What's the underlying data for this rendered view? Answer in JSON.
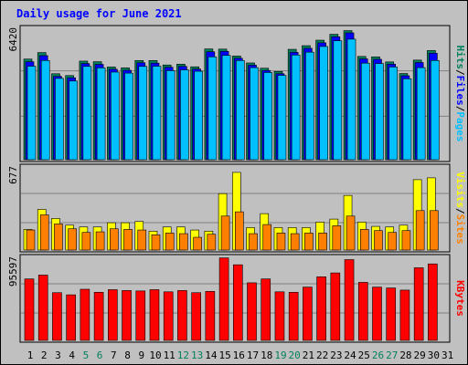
{
  "chart_data": [
    {
      "type": "bar",
      "title": "Daily usage for June 2021",
      "categories": [
        "1",
        "2",
        "3",
        "4",
        "5",
        "6",
        "7",
        "8",
        "9",
        "10",
        "11",
        "12",
        "13",
        "14",
        "15",
        "16",
        "17",
        "18",
        "19",
        "20",
        "21",
        "22",
        "23",
        "24",
        "25",
        "26",
        "27",
        "28",
        "29",
        "30",
        "31"
      ],
      "weekend_days": [
        "5",
        "6",
        "12",
        "13",
        "19",
        "20",
        "26",
        "27"
      ],
      "ymax_label": "6420",
      "ylim": [
        0,
        6420
      ],
      "legend": [
        "Pages",
        "Files",
        "Hits"
      ],
      "series": [
        {
          "name": "Hits",
          "color": "#00805c",
          "values": [
            4950,
            5270,
            4230,
            4140,
            4850,
            4820,
            4560,
            4520,
            4880,
            4880,
            4660,
            4700,
            4570,
            5450,
            5440,
            5100,
            4760,
            4500,
            4340,
            5430,
            5610,
            5880,
            6170,
            6350,
            5080,
            5060,
            4810,
            4240,
            4900,
            5370,
            0
          ]
        },
        {
          "name": "Files",
          "color": "#0000ff",
          "values": [
            4820,
            5120,
            4100,
            4030,
            4730,
            4690,
            4450,
            4400,
            4770,
            4750,
            4550,
            4590,
            4460,
            5310,
            5330,
            4990,
            4650,
            4390,
            4230,
            5280,
            5480,
            5750,
            6050,
            6240,
            4960,
            4940,
            4700,
            4130,
            4780,
            5240,
            0
          ]
        },
        {
          "name": "Pages",
          "color": "#00c0ff",
          "values": [
            4600,
            4880,
            4000,
            3870,
            4590,
            4520,
            4310,
            4260,
            4590,
            4600,
            4380,
            4420,
            4350,
            5060,
            5130,
            4880,
            4530,
            4290,
            4150,
            5150,
            5290,
            5570,
            5850,
            5930,
            4750,
            4730,
            4560,
            3980,
            4530,
            4880,
            0
          ]
        }
      ]
    },
    {
      "type": "bar",
      "ymax_label": "677",
      "ylim": [
        0,
        677
      ],
      "legend": [
        "Sites",
        "Visits"
      ],
      "series": [
        {
          "name": "Visits",
          "color": "#ffff00",
          "values": [
            170,
            335,
            260,
            205,
            190,
            190,
            225,
            225,
            235,
            155,
            190,
            190,
            165,
            155,
            465,
            640,
            185,
            300,
            185,
            185,
            185,
            230,
            255,
            450,
            230,
            195,
            190,
            205,
            580,
            595,
            0
          ]
        },
        {
          "name": "Sites",
          "color": "#ff8000",
          "values": [
            165,
            290,
            215,
            175,
            145,
            150,
            175,
            170,
            165,
            125,
            140,
            135,
            105,
            130,
            280,
            315,
            135,
            210,
            140,
            135,
            140,
            140,
            200,
            280,
            170,
            160,
            145,
            160,
            325,
            325,
            0
          ]
        }
      ]
    },
    {
      "type": "bar",
      "ymax_label": "95597",
      "ylim": [
        0,
        95597
      ],
      "legend": [
        "KBytes"
      ],
      "series": [
        {
          "name": "KBytes",
          "color": "#ff0000",
          "values": [
            71500,
            76000,
            55500,
            53000,
            59500,
            56000,
            59000,
            58000,
            57500,
            59000,
            56500,
            58000,
            55500,
            57000,
            96000,
            88000,
            67000,
            71500,
            56500,
            56000,
            62000,
            74000,
            78500,
            94000,
            67500,
            62000,
            61000,
            58500,
            84500,
            89000,
            0
          ]
        }
      ]
    }
  ]
}
